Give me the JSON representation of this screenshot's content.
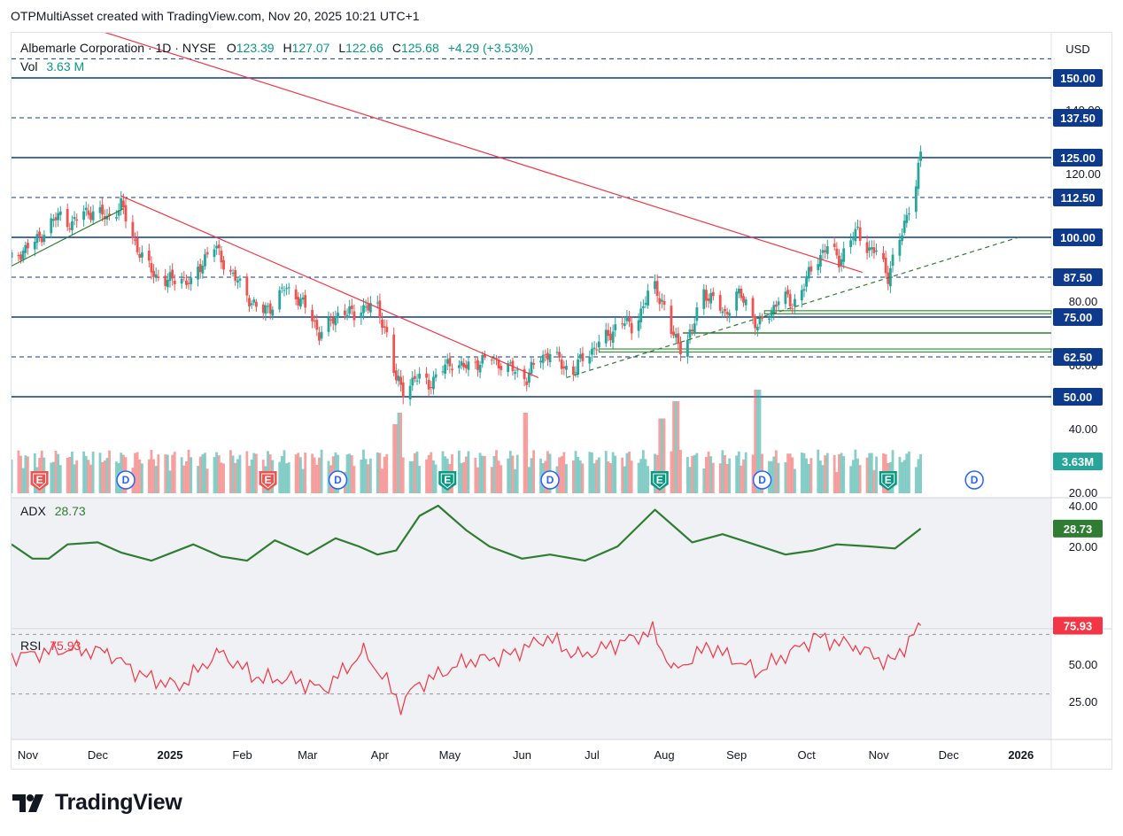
{
  "header": {
    "attribution": "OTPMultiAsset created with TradingView.com, Nov 20, 2025 10:21 UTC+1"
  },
  "footer": {
    "brand": "TradingView"
  },
  "legend": {
    "symbol": "Albemarle Corporation · 1D · NYSE",
    "open_label": "O",
    "open": "123.39",
    "high_label": "H",
    "high": "127.07",
    "low_label": "L",
    "low": "122.66",
    "close_label": "C",
    "close": "125.68",
    "change": "+4.29 (+3.53%)",
    "vol_label": "Vol",
    "vol": "3.63 M"
  },
  "colors": {
    "up": "#26a69a",
    "down": "#ef5350",
    "level": "#0d3a8c",
    "trend": "#f23645",
    "support": "#2e7d32",
    "adx": "#2e7d32",
    "rsi": "#f23645",
    "dividend": "#2962ff"
  },
  "chart_data": [
    {
      "type": "candlestick",
      "title": "Albemarle Corporation · 1D · NYSE",
      "currency": "USD",
      "ylim": [
        20,
        160
      ],
      "x_tick_labels": [
        "Nov",
        "Dec",
        "2025",
        "Feb",
        "Mar",
        "Apr",
        "May",
        "Jun",
        "Jul",
        "Aug",
        "Sep",
        "Oct",
        "Nov",
        "Dec",
        "2026"
      ],
      "y_tick_labels": [
        "140.00",
        "120.00",
        "80.00",
        "60.00",
        "40.00",
        "20.00"
      ],
      "price_labels": [
        "150.00",
        "137.50",
        "125.00",
        "112.50",
        "100.00",
        "87.50",
        "75.00",
        "62.50",
        "50.00"
      ],
      "horizontal_levels": [
        {
          "price": 156,
          "style": "dashed"
        },
        {
          "price": 150,
          "style": "solid"
        },
        {
          "price": 137.5,
          "style": "dashed"
        },
        {
          "price": 125,
          "style": "solid"
        },
        {
          "price": 112.5,
          "style": "dashed"
        },
        {
          "price": 100,
          "style": "solid"
        },
        {
          "price": 87.5,
          "style": "dashed"
        },
        {
          "price": 75,
          "style": "solid"
        },
        {
          "price": 62.5,
          "style": "dashed"
        },
        {
          "price": 50,
          "style": "solid"
        }
      ],
      "trendlines": [
        {
          "from": [
            "2024-12-01",
            165
          ],
          "to": [
            "2025-10-25",
            89
          ],
          "color": "red"
        },
        {
          "from": [
            "2024-12-11",
            113
          ],
          "to": [
            "2025-06-08",
            56
          ],
          "color": "red"
        },
        {
          "from": [
            "2024-10-25",
            91
          ],
          "to": [
            "2024-12-12",
            109
          ],
          "color": "green"
        },
        {
          "from": [
            "2025-06-20",
            56
          ],
          "to": [
            "2025-12-31",
            100
          ],
          "color": "green",
          "style": "dashed"
        }
      ],
      "support_zones": [
        {
          "from": "2025-09-13",
          "top": 77,
          "bottom": 76
        },
        {
          "from": "2025-08-09",
          "top": 70,
          "bottom": 70
        },
        {
          "from": "2025-07-04",
          "top": 65,
          "bottom": 64
        }
      ],
      "closes": [
        {
          "date": "2024-10-25",
          "close": 93
        },
        {
          "date": "2024-10-30",
          "close": 96
        },
        {
          "date": "2024-11-05",
          "close": 99
        },
        {
          "date": "2024-11-10",
          "close": 104
        },
        {
          "date": "2024-11-15",
          "close": 107
        },
        {
          "date": "2024-11-20",
          "close": 104
        },
        {
          "date": "2024-11-25",
          "close": 108
        },
        {
          "date": "2024-11-30",
          "close": 108
        },
        {
          "date": "2024-12-05",
          "close": 106
        },
        {
          "date": "2024-12-11",
          "close": 110
        },
        {
          "date": "2024-12-16",
          "close": 100
        },
        {
          "date": "2024-12-21",
          "close": 92
        },
        {
          "date": "2024-12-26",
          "close": 88
        },
        {
          "date": "2024-12-31",
          "close": 86
        },
        {
          "date": "2025-01-05",
          "close": 88
        },
        {
          "date": "2025-01-10",
          "close": 85
        },
        {
          "date": "2025-01-16",
          "close": 94
        },
        {
          "date": "2025-01-20",
          "close": 97
        },
        {
          "date": "2025-01-25",
          "close": 91
        },
        {
          "date": "2025-01-30",
          "close": 86
        },
        {
          "date": "2025-02-04",
          "close": 81
        },
        {
          "date": "2025-02-09",
          "close": 76
        },
        {
          "date": "2025-02-14",
          "close": 79
        },
        {
          "date": "2025-02-19",
          "close": 84
        },
        {
          "date": "2025-02-24",
          "close": 82
        },
        {
          "date": "2025-03-01",
          "close": 77
        },
        {
          "date": "2025-03-06",
          "close": 70
        },
        {
          "date": "2025-03-11",
          "close": 73
        },
        {
          "date": "2025-03-16",
          "close": 78
        },
        {
          "date": "2025-03-21",
          "close": 75
        },
        {
          "date": "2025-03-26",
          "close": 79
        },
        {
          "date": "2025-03-31",
          "close": 77
        },
        {
          "date": "2025-04-04",
          "close": 70
        },
        {
          "date": "2025-04-08",
          "close": 55
        },
        {
          "date": "2025-04-11",
          "close": 52
        },
        {
          "date": "2025-04-16",
          "close": 56
        },
        {
          "date": "2025-04-22",
          "close": 54
        },
        {
          "date": "2025-04-27",
          "close": 58
        },
        {
          "date": "2025-05-02",
          "close": 61
        },
        {
          "date": "2025-05-08",
          "close": 59
        },
        {
          "date": "2025-05-13",
          "close": 61
        },
        {
          "date": "2025-05-19",
          "close": 62
        },
        {
          "date": "2025-05-24",
          "close": 60
        },
        {
          "date": "2025-05-29",
          "close": 58
        },
        {
          "date": "2025-06-03",
          "close": 56
        },
        {
          "date": "2025-06-08",
          "close": 62
        },
        {
          "date": "2025-06-13",
          "close": 64
        },
        {
          "date": "2025-06-18",
          "close": 60
        },
        {
          "date": "2025-06-23",
          "close": 58
        },
        {
          "date": "2025-06-28",
          "close": 63
        },
        {
          "date": "2025-07-03",
          "close": 66
        },
        {
          "date": "2025-07-08",
          "close": 69
        },
        {
          "date": "2025-07-13",
          "close": 74
        },
        {
          "date": "2025-07-18",
          "close": 72
        },
        {
          "date": "2025-07-23",
          "close": 78
        },
        {
          "date": "2025-07-27",
          "close": 86
        },
        {
          "date": "2025-07-31",
          "close": 80
        },
        {
          "date": "2025-08-04",
          "close": 70
        },
        {
          "date": "2025-08-08",
          "close": 66
        },
        {
          "date": "2025-08-13",
          "close": 70
        },
        {
          "date": "2025-08-17",
          "close": 84
        },
        {
          "date": "2025-08-22",
          "close": 80
        },
        {
          "date": "2025-08-27",
          "close": 76
        },
        {
          "date": "2025-09-01",
          "close": 82
        },
        {
          "date": "2025-09-05",
          "close": 80
        },
        {
          "date": "2025-09-10",
          "close": 72
        },
        {
          "date": "2025-09-15",
          "close": 76
        },
        {
          "date": "2025-09-20",
          "close": 82
        },
        {
          "date": "2025-09-25",
          "close": 79
        },
        {
          "date": "2025-09-30",
          "close": 85
        },
        {
          "date": "2025-10-05",
          "close": 93
        },
        {
          "date": "2025-10-10",
          "close": 97
        },
        {
          "date": "2025-10-15",
          "close": 93
        },
        {
          "date": "2025-10-19",
          "close": 98
        },
        {
          "date": "2025-10-23",
          "close": 102
        },
        {
          "date": "2025-10-28",
          "close": 96
        },
        {
          "date": "2025-11-01",
          "close": 95
        },
        {
          "date": "2025-11-05",
          "close": 88
        },
        {
          "date": "2025-11-08",
          "close": 95
        },
        {
          "date": "2025-11-11",
          "close": 101
        },
        {
          "date": "2025-11-14",
          "close": 110
        },
        {
          "date": "2025-11-17",
          "close": 117
        },
        {
          "date": "2025-11-19",
          "close": 125.68
        }
      ],
      "events": [
        {
          "date": "2024-11-06",
          "type": "earnings",
          "label": "E",
          "color": "red"
        },
        {
          "date": "2024-12-13",
          "type": "dividend",
          "label": "D"
        },
        {
          "date": "2025-02-12",
          "type": "earnings",
          "label": "E",
          "color": "red"
        },
        {
          "date": "2025-03-14",
          "type": "dividend",
          "label": "D"
        },
        {
          "date": "2025-04-30",
          "type": "earnings",
          "label": "E",
          "color": "green"
        },
        {
          "date": "2025-06-13",
          "type": "dividend",
          "label": "D"
        },
        {
          "date": "2025-07-30",
          "type": "earnings",
          "label": "E",
          "color": "green"
        },
        {
          "date": "2025-09-12",
          "type": "dividend",
          "label": "D"
        },
        {
          "date": "2025-11-05",
          "type": "earnings",
          "label": "E",
          "color": "green"
        },
        {
          "date": "2025-12-12",
          "type": "dividend",
          "label": "D"
        }
      ]
    },
    {
      "type": "bar",
      "title": "Vol",
      "last_value_label": "3.63M",
      "volume_spikes": [
        {
          "date": "2025-04-07",
          "relative_height": 0.6
        },
        {
          "date": "2025-04-09",
          "relative_height": 0.7
        },
        {
          "date": "2025-06-02",
          "relative_height": 0.7
        },
        {
          "date": "2025-07-31",
          "relative_height": 0.65
        },
        {
          "date": "2025-08-06",
          "relative_height": 0.8
        },
        {
          "date": "2025-09-10",
          "relative_height": 0.9
        }
      ]
    },
    {
      "type": "line",
      "title": "ADX",
      "value": "28.73",
      "ylim": [
        0,
        40
      ],
      "y_tick_labels": [
        "40.00",
        "20.00"
      ],
      "series": [
        {
          "name": "ADX",
          "points": [
            {
              "date": "2024-10-25",
              "y": 21
            },
            {
              "date": "2024-11-03",
              "y": 14
            },
            {
              "date": "2024-11-10",
              "y": 14
            },
            {
              "date": "2024-11-18",
              "y": 21
            },
            {
              "date": "2024-12-01",
              "y": 22
            },
            {
              "date": "2024-12-11",
              "y": 17
            },
            {
              "date": "2024-12-24",
              "y": 13
            },
            {
              "date": "2025-01-11",
              "y": 21
            },
            {
              "date": "2025-01-23",
              "y": 15
            },
            {
              "date": "2025-02-03",
              "y": 13
            },
            {
              "date": "2025-02-15",
              "y": 23
            },
            {
              "date": "2025-03-01",
              "y": 16
            },
            {
              "date": "2025-03-13",
              "y": 24
            },
            {
              "date": "2025-03-23",
              "y": 20
            },
            {
              "date": "2025-03-31",
              "y": 16
            },
            {
              "date": "2025-04-08",
              "y": 18
            },
            {
              "date": "2025-04-18",
              "y": 35
            },
            {
              "date": "2025-04-26",
              "y": 40
            },
            {
              "date": "2025-05-08",
              "y": 28
            },
            {
              "date": "2025-05-18",
              "y": 20
            },
            {
              "date": "2025-06-01",
              "y": 14
            },
            {
              "date": "2025-06-13",
              "y": 16
            },
            {
              "date": "2025-06-28",
              "y": 13
            },
            {
              "date": "2025-07-12",
              "y": 20
            },
            {
              "date": "2025-07-28",
              "y": 38
            },
            {
              "date": "2025-08-13",
              "y": 22
            },
            {
              "date": "2025-08-26",
              "y": 26
            },
            {
              "date": "2025-09-06",
              "y": 22
            },
            {
              "date": "2025-09-22",
              "y": 16
            },
            {
              "date": "2025-10-04",
              "y": 18
            },
            {
              "date": "2025-10-14",
              "y": 21
            },
            {
              "date": "2025-10-28",
              "y": 20
            },
            {
              "date": "2025-11-08",
              "y": 19
            },
            {
              "date": "2025-11-19",
              "y": 28.73
            }
          ]
        }
      ]
    },
    {
      "type": "line",
      "title": "RSI",
      "value": "75.93",
      "ylim": [
        0,
        100
      ],
      "y_tick_labels": [
        "50.00",
        "25.00"
      ],
      "bands": [
        70,
        30
      ],
      "series": [
        {
          "name": "RSI",
          "points": [
            {
              "date": "2024-10-25",
              "y": 55
            },
            {
              "date": "2024-11-08",
              "y": 58
            },
            {
              "date": "2024-11-20",
              "y": 60
            },
            {
              "date": "2024-12-05",
              "y": 58
            },
            {
              "date": "2024-12-20",
              "y": 42
            },
            {
              "date": "2025-01-05",
              "y": 35
            },
            {
              "date": "2025-01-22",
              "y": 58
            },
            {
              "date": "2025-02-08",
              "y": 40
            },
            {
              "date": "2025-02-22",
              "y": 40
            },
            {
              "date": "2025-03-08",
              "y": 33
            },
            {
              "date": "2025-03-25",
              "y": 58
            },
            {
              "date": "2025-04-04",
              "y": 38
            },
            {
              "date": "2025-04-10",
              "y": 22
            },
            {
              "date": "2025-04-16",
              "y": 35
            },
            {
              "date": "2025-05-08",
              "y": 52
            },
            {
              "date": "2025-05-25",
              "y": 55
            },
            {
              "date": "2025-06-12",
              "y": 68
            },
            {
              "date": "2025-06-25",
              "y": 55
            },
            {
              "date": "2025-07-27",
              "y": 72
            },
            {
              "date": "2025-08-05",
              "y": 45
            },
            {
              "date": "2025-08-20",
              "y": 62
            },
            {
              "date": "2025-09-10",
              "y": 45
            },
            {
              "date": "2025-10-05",
              "y": 68
            },
            {
              "date": "2025-10-22",
              "y": 62
            },
            {
              "date": "2025-11-06",
              "y": 50
            },
            {
              "date": "2025-11-19",
              "y": 75.93
            }
          ]
        }
      ]
    }
  ]
}
